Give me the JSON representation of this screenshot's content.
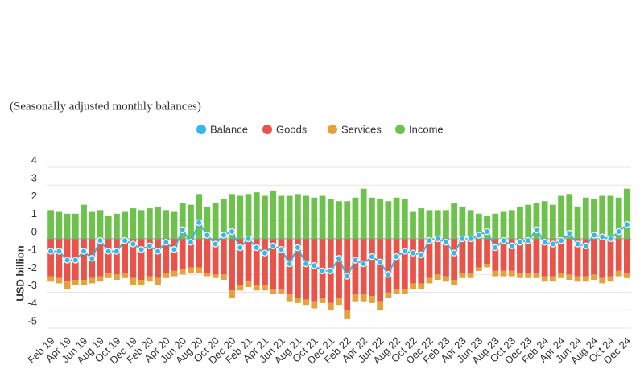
{
  "chart_data": {
    "type": "stacked-bar-line",
    "subtitle": "(Seasonally adjusted monthly balances)",
    "y_label": "USD billion",
    "categories": [
      "Feb 19",
      null,
      "Apr 19",
      null,
      "Jun 19",
      null,
      "Aug 19",
      null,
      "Oct 19",
      null,
      "Dec 19",
      null,
      "Feb 20",
      null,
      "Apr 20",
      null,
      "Jun 20",
      null,
      "Aug 20",
      null,
      "Oct 20",
      null,
      "Dec 20",
      null,
      "Feb 21",
      null,
      "Apr 21",
      null,
      "Jun 21",
      null,
      "Aug 21",
      null,
      "Oct 21",
      null,
      "Dec 21",
      null,
      "Feb 22",
      null,
      "Apr 22",
      null,
      "Jun 22",
      null,
      "Aug 22",
      null,
      "Oct 22",
      null,
      "Dec 22",
      null,
      "Feb 23",
      null,
      "Apr 23",
      null,
      "Jun 23",
      null,
      "Aug 23",
      null,
      "Oct 23",
      null,
      "Dec 23",
      null,
      "Feb 24",
      null,
      "Apr 24",
      null,
      "Jun 24",
      null,
      "Aug 24",
      null,
      "Oct 24",
      null,
      "Dec 24"
    ],
    "series": [
      {
        "name": "Balance",
        "color": "#35b8e8",
        "kind": "line",
        "values": [
          -0.7,
          -0.7,
          -1.2,
          -1.2,
          -0.7,
          -1.1,
          -0.1,
          -0.7,
          -0.7,
          -0.1,
          -0.3,
          -0.6,
          -0.4,
          -0.7,
          -0.2,
          -0.6,
          0.5,
          -0.2,
          0.9,
          0.2,
          -0.3,
          0.2,
          0.4,
          -0.5,
          0.0,
          -0.5,
          -0.8,
          -0.4,
          -0.6,
          -1.4,
          -0.5,
          -1.4,
          -1.5,
          -1.8,
          -1.8,
          -1.1,
          -2.1,
          -1.2,
          -1.4,
          -1.0,
          -1.3,
          -2.0,
          -1.0,
          -0.7,
          -0.8,
          -0.9,
          -0.1,
          0.0,
          -0.2,
          -0.8,
          0.0,
          0.0,
          0.2,
          0.4,
          -0.5,
          -0.1,
          -0.4,
          -0.2,
          -0.1,
          0.5,
          -0.2,
          -0.3,
          -0.1,
          0.3,
          -0.3,
          -0.4,
          0.2,
          0.1,
          0.0,
          0.4,
          0.8
        ]
      },
      {
        "name": "Goods",
        "color": "#e8534a",
        "kind": "bar",
        "values": [
          -2.1,
          -2.2,
          -2.4,
          -2.3,
          -2.3,
          -2.2,
          -2.1,
          -1.9,
          -2.0,
          -1.9,
          -2.2,
          -2.3,
          -2.1,
          -2.2,
          -1.9,
          -1.8,
          -1.7,
          -1.6,
          -1.6,
          -1.9,
          -2.0,
          -2.0,
          -2.9,
          -2.6,
          -2.4,
          -2.6,
          -2.6,
          -2.8,
          -2.8,
          -3.1,
          -3.3,
          -3.4,
          -3.5,
          -3.3,
          -3.6,
          -3.3,
          -4.0,
          -3.1,
          -3.1,
          -3.2,
          -3.5,
          -3.0,
          -2.8,
          -2.8,
          -2.5,
          -2.5,
          -2.2,
          -2.0,
          -2.1,
          -2.3,
          -1.9,
          -1.9,
          -1.6,
          -1.4,
          -1.8,
          -1.8,
          -1.8,
          -1.9,
          -1.9,
          -1.9,
          -2.1,
          -2.1,
          -1.9,
          -2.0,
          -2.1,
          -2.1,
          -2.0,
          -2.2,
          -2.1,
          -1.8,
          -1.9
        ]
      },
      {
        "name": "Services",
        "color": "#e6a03c",
        "kind": "bar",
        "values": [
          -0.3,
          -0.3,
          -0.4,
          -0.3,
          -0.3,
          -0.3,
          -0.3,
          -0.3,
          -0.3,
          -0.3,
          -0.4,
          -0.3,
          -0.3,
          -0.4,
          -0.3,
          -0.3,
          -0.3,
          -0.3,
          -0.3,
          -0.2,
          -0.2,
          -0.3,
          -0.4,
          -0.3,
          -0.3,
          -0.3,
          -0.3,
          -0.3,
          -0.3,
          -0.4,
          -0.3,
          -0.3,
          -0.4,
          -0.3,
          -0.4,
          -0.4,
          -0.5,
          -0.4,
          -0.4,
          -0.4,
          -0.5,
          -0.3,
          -0.3,
          -0.3,
          -0.3,
          -0.3,
          -0.3,
          -0.3,
          -0.3,
          -0.3,
          -0.3,
          -0.3,
          -0.2,
          -0.2,
          -0.3,
          -0.3,
          -0.3,
          -0.3,
          -0.3,
          -0.3,
          -0.3,
          -0.3,
          -0.3,
          -0.3,
          -0.3,
          -0.3,
          -0.3,
          -0.3,
          -0.3,
          -0.3,
          -0.3
        ]
      },
      {
        "name": "Income",
        "color": "#6cc24a",
        "kind": "bar",
        "values": [
          1.6,
          1.5,
          1.4,
          1.4,
          1.9,
          1.5,
          1.6,
          1.3,
          1.4,
          1.5,
          1.7,
          1.6,
          1.7,
          1.8,
          1.6,
          1.5,
          2.0,
          1.9,
          2.5,
          1.8,
          2.0,
          2.2,
          2.5,
          2.4,
          2.5,
          2.6,
          2.4,
          2.7,
          2.4,
          2.4,
          2.5,
          2.4,
          2.3,
          2.4,
          2.2,
          2.1,
          2.1,
          2.3,
          2.8,
          2.3,
          2.2,
          2.1,
          2.3,
          2.2,
          1.5,
          1.7,
          1.6,
          1.6,
          1.6,
          2.0,
          1.8,
          1.6,
          1.4,
          1.3,
          1.4,
          1.5,
          1.6,
          1.8,
          1.9,
          2.0,
          2.1,
          1.9,
          2.4,
          2.5,
          1.8,
          2.3,
          2.2,
          2.4,
          2.4,
          2.3,
          2.8
        ]
      }
    ],
    "ylim": [
      -5,
      4
    ],
    "yticks": [
      4,
      3,
      2,
      1,
      0,
      -1,
      -2,
      -3,
      -4,
      -5
    ],
    "grid": true
  }
}
